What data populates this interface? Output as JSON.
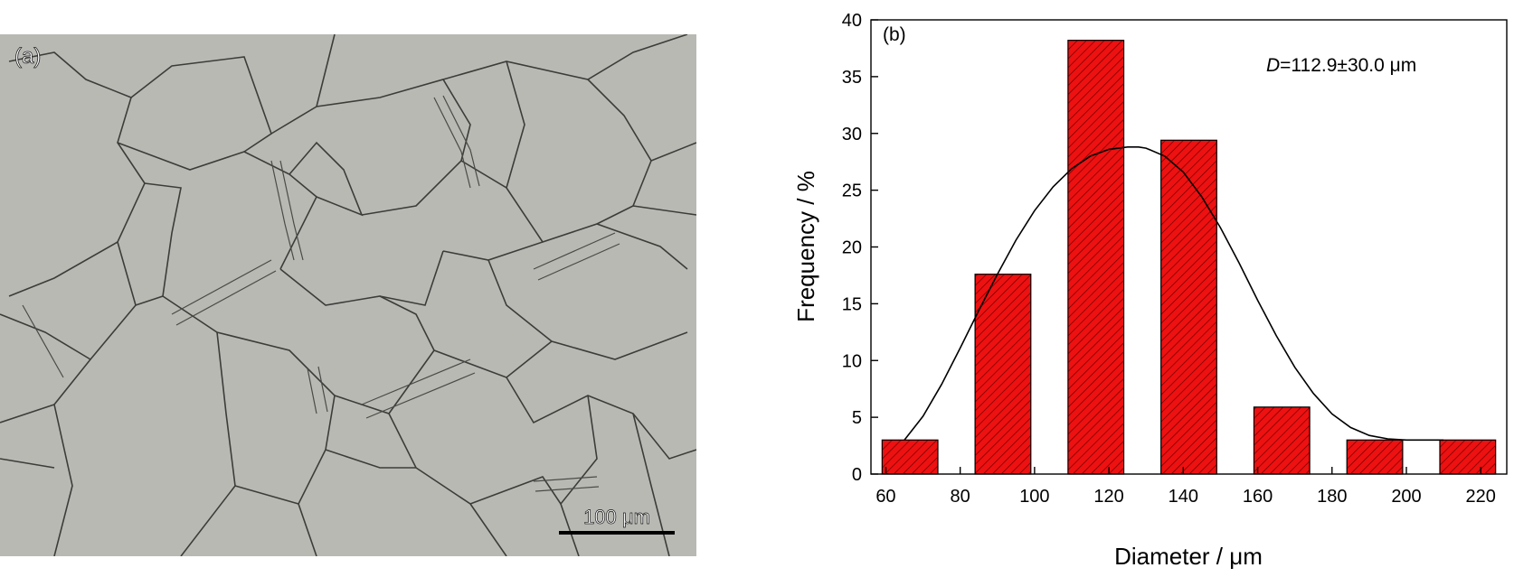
{
  "micrograph": {
    "panel_label": "(a)",
    "scale_bar_label": "100 μm",
    "background_color": "#b9b9b4",
    "boundary_color": "#3c3c3a"
  },
  "chart_data": {
    "type": "bar",
    "panel_label": "(b)",
    "annotation_var": "D",
    "annotation_rest": "=112.9±30.0 μm",
    "xlabel": "Diameter / μm",
    "ylabel": "Frequency / %",
    "xlim": [
      56,
      227
    ],
    "ylim": [
      0,
      40
    ],
    "xticks": [
      60,
      80,
      100,
      120,
      140,
      160,
      180,
      200,
      220
    ],
    "yticks": [
      0,
      5,
      10,
      15,
      20,
      25,
      30,
      35,
      40
    ],
    "bar_width": 15,
    "bars": [
      {
        "x": 66.5,
        "value": 3
      },
      {
        "x": 91.5,
        "value": 17.6
      },
      {
        "x": 116.5,
        "value": 38.2
      },
      {
        "x": 141.5,
        "value": 29.4
      },
      {
        "x": 166.5,
        "value": 5.9
      },
      {
        "x": 191.5,
        "value": 3
      },
      {
        "x": 216.5,
        "value": 3
      }
    ],
    "fit_curve": {
      "x": [
        65,
        70,
        75,
        80,
        85,
        90,
        95,
        100,
        105,
        110,
        115,
        120,
        125,
        128,
        130,
        135,
        140,
        145,
        150,
        155,
        160,
        165,
        170,
        175,
        180,
        185,
        190,
        195,
        200,
        205,
        210
      ],
      "y": [
        3,
        5.1,
        7.9,
        11.1,
        14.4,
        17.6,
        20.6,
        23.2,
        25.3,
        26.9,
        28.0,
        28.6,
        28.8,
        28.8,
        28.7,
        28.0,
        26.6,
        24.4,
        21.7,
        18.6,
        15.3,
        12.2,
        9.4,
        7.1,
        5.3,
        4.1,
        3.4,
        3.1,
        3.0,
        3.0,
        3.0
      ]
    },
    "bar_color": "#ee1111",
    "hatch_color": "#6a0000",
    "curve_color": "#000000",
    "grid": false
  }
}
